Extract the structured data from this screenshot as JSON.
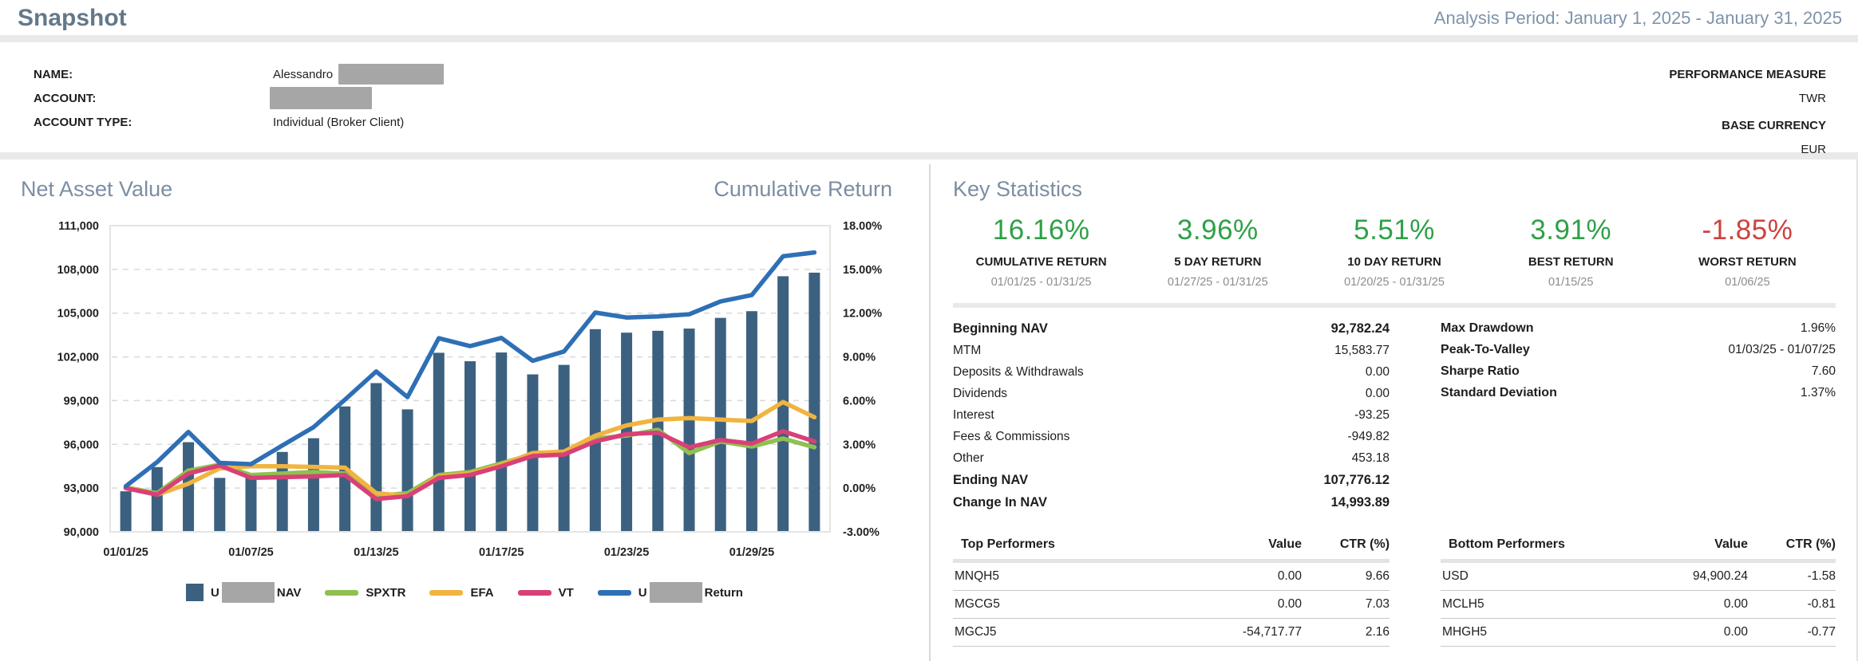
{
  "header": {
    "title": "Snapshot",
    "analysis_period": "Analysis Period: January 1, 2025 - January 31, 2025"
  },
  "account_info": {
    "left_rows": [
      {
        "label": "NAME:",
        "value": "Alessandro",
        "redacted": true
      },
      {
        "label": "ACCOUNT:",
        "value": "",
        "redacted": true
      },
      {
        "label": "ACCOUNT TYPE:",
        "value": "Individual (Broker Client)",
        "redacted": false
      }
    ],
    "right_rows": [
      {
        "label": "PERFORMANCE MEASURE",
        "value": "TWR"
      },
      {
        "label": "BASE CURRENCY",
        "value": "EUR"
      }
    ]
  },
  "nav_panel": {
    "title_left": "Net Asset Value",
    "title_right": "Cumulative Return"
  },
  "chart_data": {
    "type": "bar+line",
    "x": [
      "01/01/25",
      "01/02/25",
      "01/03/25",
      "01/06/25",
      "01/07/25",
      "01/08/25",
      "01/09/25",
      "01/10/25",
      "01/13/25",
      "01/14/25",
      "01/15/25",
      "01/16/25",
      "01/17/25",
      "01/20/25",
      "01/21/25",
      "01/22/25",
      "01/23/25",
      "01/24/25",
      "01/27/25",
      "01/28/25",
      "01/29/25",
      "01/30/25",
      "01/31/25"
    ],
    "x_ticks": [
      {
        "index": 0,
        "label": "01/01/25"
      },
      {
        "index": 4,
        "label": "01/07/25"
      },
      {
        "index": 8,
        "label": "01/13/25"
      },
      {
        "index": 12,
        "label": "01/17/25"
      },
      {
        "index": 16,
        "label": "01/23/25"
      },
      {
        "index": 20,
        "label": "01/29/25"
      }
    ],
    "left_axis": {
      "name": "Net Asset Value",
      "min": 90000,
      "max": 111000,
      "tick_labels": [
        "111,000",
        "108,000",
        "105,000",
        "102,000",
        "99,000",
        "96,000",
        "93,000",
        "90,000"
      ]
    },
    "right_axis": {
      "name": "Cumulative Return (%)",
      "min": -3,
      "max": 18,
      "tick_labels": [
        "18.00%",
        "15.00%",
        "12.00%",
        "9.00%",
        "6.00%",
        "3.00%",
        "0.00%",
        "-3.00%"
      ]
    },
    "grid": "dashed-horizontal",
    "legend_position": "bottom-center",
    "bar_series": {
      "name_prefix": "U",
      "name_redacted": true,
      "name_suffix": "NAV",
      "color": "#3C6180",
      "values": [
        92782,
        94440,
        96150,
        93700,
        93800,
        95480,
        96420,
        98600,
        100200,
        98400,
        102280,
        101700,
        102300,
        100800,
        101450,
        103900,
        103660,
        103790,
        103940,
        104675,
        105135,
        107530,
        107776
      ]
    },
    "line_series": [
      {
        "label": "SPXTR",
        "color": "#8FC050",
        "values": [
          0.05,
          -0.35,
          1.2,
          1.6,
          0.9,
          1.0,
          1.1,
          1.0,
          -0.55,
          -0.35,
          0.9,
          1.1,
          1.7,
          2.3,
          2.4,
          3.4,
          3.6,
          4.0,
          2.4,
          3.2,
          2.85,
          3.4,
          2.8
        ]
      },
      {
        "label": "EFA",
        "color": "#F0B43F",
        "values": [
          0.05,
          -0.45,
          0.3,
          1.35,
          1.5,
          1.5,
          1.45,
          1.4,
          -0.35,
          -0.55,
          0.8,
          1.0,
          1.6,
          2.4,
          2.5,
          3.6,
          4.3,
          4.7,
          4.8,
          4.7,
          4.6,
          5.9,
          4.86
        ]
      },
      {
        "label": "VT",
        "color": "#D94077",
        "values": [
          0.0,
          -0.45,
          1.0,
          1.55,
          0.7,
          0.75,
          0.8,
          0.9,
          -0.75,
          -0.55,
          0.7,
          0.9,
          1.5,
          2.2,
          2.3,
          3.2,
          3.7,
          3.8,
          2.8,
          3.3,
          3.05,
          3.9,
          3.2
        ]
      },
      {
        "label_prefix": "U",
        "label_redacted": true,
        "label_suffix": "Return",
        "color": "#2E6FB5",
        "values": [
          0.13,
          1.78,
          3.85,
          1.73,
          1.64,
          2.92,
          4.18,
          6.06,
          8.0,
          6.24,
          10.28,
          9.74,
          10.3,
          8.73,
          9.37,
          12.04,
          11.7,
          11.77,
          11.92,
          12.8,
          13.24,
          15.9,
          16.16
        ]
      }
    ]
  },
  "key_stats": {
    "title": "Key Statistics",
    "cards": [
      {
        "value": "16.16%",
        "label": "CUMULATIVE RETURN",
        "date": "01/01/25 - 01/31/25",
        "tone": "positive"
      },
      {
        "value": "3.96%",
        "label": "5 DAY RETURN",
        "date": "01/27/25 - 01/31/25",
        "tone": "positive"
      },
      {
        "value": "5.51%",
        "label": "10 DAY RETURN",
        "date": "01/20/25 - 01/31/25",
        "tone": "positive"
      },
      {
        "value": "3.91%",
        "label": "BEST RETURN",
        "date": "01/15/25",
        "tone": "positive"
      },
      {
        "value": "-1.85%",
        "label": "WORST RETURN",
        "date": "01/06/25",
        "tone": "negative"
      }
    ],
    "nav_summary": {
      "rows": [
        {
          "label": "Beginning NAV",
          "value": "92,782.24",
          "bold": true
        },
        {
          "label": "MTM",
          "value": "15,583.77",
          "bold": false
        },
        {
          "label": "Deposits & Withdrawals",
          "value": "0.00",
          "bold": false
        },
        {
          "label": "Dividends",
          "value": "0.00",
          "bold": false
        },
        {
          "label": "Interest",
          "value": "-93.25",
          "bold": false
        },
        {
          "label": "Fees & Commissions",
          "value": "-949.82",
          "bold": false
        },
        {
          "label": "Other",
          "value": "453.18",
          "bold": false
        },
        {
          "label": "Ending NAV",
          "value": "107,776.12",
          "bold": true
        },
        {
          "label": "Change In NAV",
          "value": "14,993.89",
          "bold": true
        }
      ]
    },
    "risk": {
      "rows": [
        {
          "label": "Max Drawdown",
          "value": "1.96%"
        },
        {
          "label": "Peak-To-Valley",
          "value": "01/03/25 - 01/07/25"
        },
        {
          "label": "Sharpe Ratio",
          "value": "7.60"
        },
        {
          "label": "Standard Deviation",
          "value": "1.37%"
        }
      ]
    },
    "top_performers": {
      "title": "Top Performers",
      "columns": [
        "Value",
        "CTR (%)"
      ],
      "rows": [
        {
          "name": "MNQH5",
          "value": "0.00",
          "ctr": "9.66"
        },
        {
          "name": "MGCG5",
          "value": "0.00",
          "ctr": "7.03"
        },
        {
          "name": "MGCJ5",
          "value": "-54,717.77",
          "ctr": "2.16"
        }
      ]
    },
    "bottom_performers": {
      "title": "Bottom Performers",
      "columns": [
        "Value",
        "CTR (%)"
      ],
      "rows": [
        {
          "name": "USD",
          "value": "94,900.24",
          "ctr": "-1.58"
        },
        {
          "name": "MCLH5",
          "value": "0.00",
          "ctr": "-0.81"
        },
        {
          "name": "MHGH5",
          "value": "0.00",
          "ctr": "-0.77"
        }
      ]
    }
  },
  "colors": {
    "positive": "#2FA048",
    "negative": "#CC423E",
    "accent_slate": "#7C8EA3",
    "bar": "#3C6180",
    "redaction": "#A6A6A6"
  }
}
